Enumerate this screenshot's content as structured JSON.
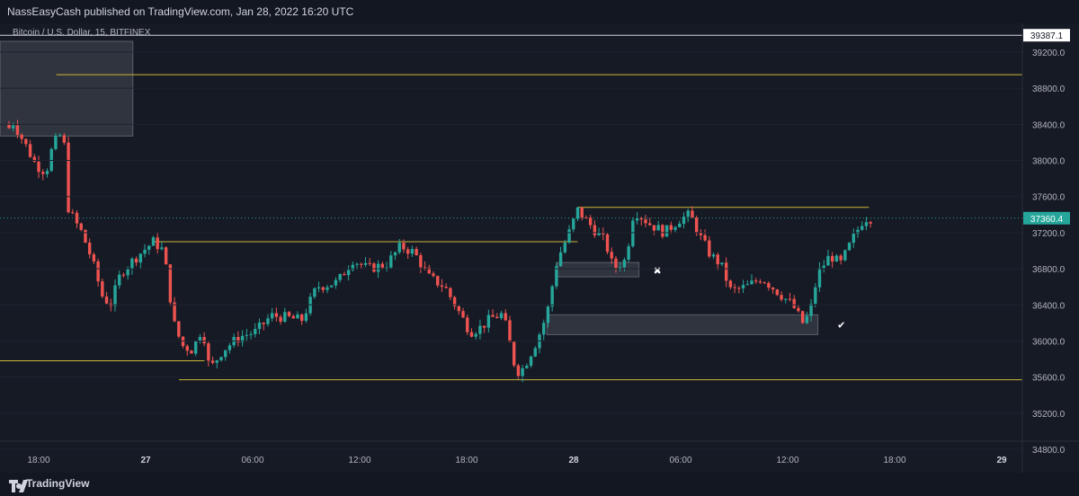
{
  "header": {
    "published": "NassEasyCash published on TradingView.com, Jan 28, 2022 16:20 UTC"
  },
  "footer": {
    "brand": "TradingView"
  },
  "chart_data": {
    "type": "candlestick",
    "title": "Bitcoin / U.S. Dollar, 15, BITFINEX",
    "ylim": [
      34600,
      39600
    ],
    "y_ticks": [
      "39200.0",
      "38800.0",
      "38400.0",
      "38000.0",
      "37600.0",
      "37200.0",
      "36800.0",
      "36400.0",
      "36000.0",
      "35600.0",
      "35200.0",
      "34800.0"
    ],
    "x_ticks": [
      {
        "label": "18:00",
        "bold": false
      },
      {
        "label": "27",
        "bold": true
      },
      {
        "label": "06:00",
        "bold": false
      },
      {
        "label": "12:00",
        "bold": false
      },
      {
        "label": "18:00",
        "bold": false
      },
      {
        "label": "28",
        "bold": true
      },
      {
        "label": "06:00",
        "bold": false
      },
      {
        "label": "12:00",
        "bold": false
      },
      {
        "label": "18:00",
        "bold": false
      },
      {
        "label": "29",
        "bold": true
      }
    ],
    "price_badges": [
      {
        "text": "39387.1",
        "value": 39387.1,
        "style": "white"
      },
      {
        "text": "37360.4",
        "value": 37360.4,
        "style": "teal"
      }
    ],
    "levels": [
      {
        "value": 38950,
        "x_start": 0.055,
        "x_end": 1.0
      },
      {
        "value": 37480,
        "x_start": 0.565,
        "x_end": 0.85
      },
      {
        "value": 37100,
        "x_start": 0.15,
        "x_end": 0.565
      },
      {
        "value": 35780,
        "x_start": 0.0,
        "x_end": 0.2
      },
      {
        "value": 35570,
        "x_start": 0.175,
        "x_end": 1.0
      }
    ],
    "current_price": 37360.4,
    "zones": [
      {
        "y_top": 39320,
        "y_bottom": 38270,
        "x_start": 0.0,
        "x_end": 0.13
      },
      {
        "y_top": 36870,
        "y_bottom": 36710,
        "x_start": 0.545,
        "x_end": 0.625
      },
      {
        "y_top": 36290,
        "y_bottom": 36070,
        "x_start": 0.535,
        "x_end": 0.8
      }
    ],
    "markers": [
      {
        "symbol": "✖",
        "x": 0.643,
        "value": 36780
      },
      {
        "symbol": "✔",
        "x": 0.823,
        "value": 36180
      }
    ],
    "candles_path": [
      [
        0,
        38230
      ],
      [
        0.013,
        38420
      ],
      [
        0.026,
        38150
      ],
      [
        0.035,
        37950
      ],
      [
        0.045,
        37870
      ],
      [
        0.052,
        38180
      ],
      [
        0.062,
        38320
      ],
      [
        0.066,
        37500
      ],
      [
        0.072,
        37350
      ],
      [
        0.08,
        37200
      ],
      [
        0.09,
        36900
      ],
      [
        0.1,
        36500
      ],
      [
        0.108,
        36400
      ],
      [
        0.118,
        36750
      ],
      [
        0.128,
        36870
      ],
      [
        0.14,
        37000
      ],
      [
        0.15,
        37100
      ],
      [
        0.16,
        37000
      ],
      [
        0.17,
        36200
      ],
      [
        0.178,
        35950
      ],
      [
        0.188,
        35900
      ],
      [
        0.198,
        36150
      ],
      [
        0.205,
        35680
      ],
      [
        0.218,
        35900
      ],
      [
        0.235,
        36050
      ],
      [
        0.25,
        36100
      ],
      [
        0.265,
        36280
      ],
      [
        0.28,
        36260
      ],
      [
        0.295,
        36230
      ],
      [
        0.31,
        36600
      ],
      [
        0.33,
        36650
      ],
      [
        0.345,
        36900
      ],
      [
        0.36,
        36800
      ],
      [
        0.378,
        36850
      ],
      [
        0.392,
        37050
      ],
      [
        0.405,
        36980
      ],
      [
        0.42,
        36700
      ],
      [
        0.435,
        36600
      ],
      [
        0.45,
        36300
      ],
      [
        0.46,
        36100
      ],
      [
        0.47,
        36150
      ],
      [
        0.48,
        36250
      ],
      [
        0.492,
        36300
      ],
      [
        0.505,
        35650
      ],
      [
        0.512,
        35700
      ],
      [
        0.525,
        36000
      ],
      [
        0.535,
        36300
      ],
      [
        0.545,
        36900
      ],
      [
        0.555,
        37150
      ],
      [
        0.565,
        37450
      ],
      [
        0.58,
        37250
      ],
      [
        0.592,
        37100
      ],
      [
        0.6,
        36800
      ],
      [
        0.612,
        36900
      ],
      [
        0.62,
        37450
      ],
      [
        0.635,
        37300
      ],
      [
        0.65,
        37200
      ],
      [
        0.665,
        37350
      ],
      [
        0.675,
        37400
      ],
      [
        0.685,
        37150
      ],
      [
        0.695,
        36950
      ],
      [
        0.705,
        36850
      ],
      [
        0.715,
        36550
      ],
      [
        0.73,
        36600
      ],
      [
        0.745,
        36700
      ],
      [
        0.76,
        36550
      ],
      [
        0.775,
        36400
      ],
      [
        0.785,
        36200
      ],
      [
        0.792,
        36300
      ],
      [
        0.8,
        36750
      ],
      [
        0.812,
        36950
      ],
      [
        0.822,
        36850
      ],
      [
        0.835,
        37150
      ],
      [
        0.845,
        37360
      ]
    ]
  }
}
